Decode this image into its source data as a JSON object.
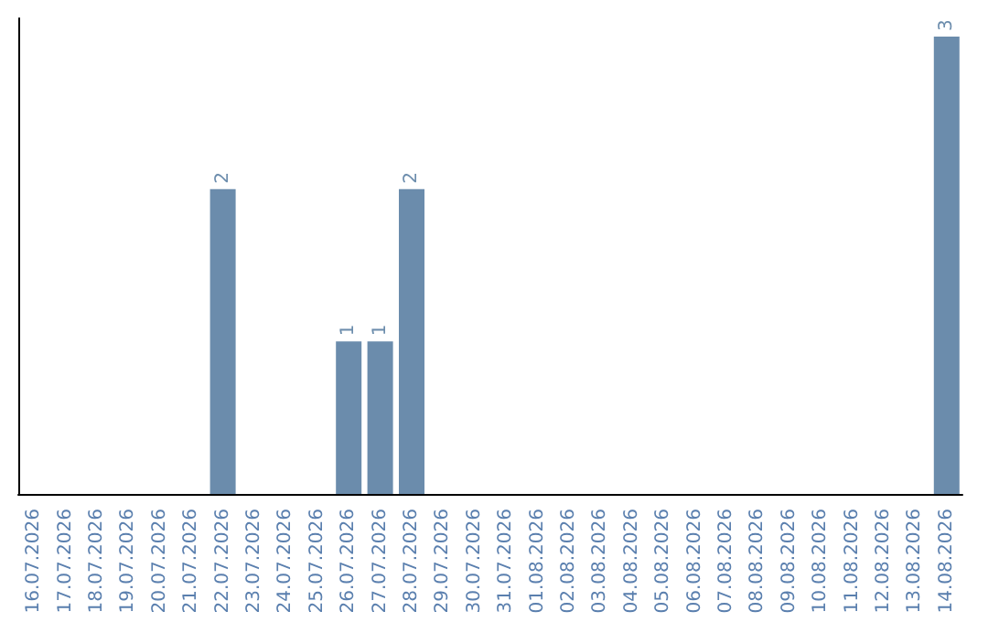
{
  "chart_data": {
    "type": "bar",
    "categories": [
      "16.07.2026",
      "17.07.2026",
      "18.07.2026",
      "19.07.2026",
      "20.07.2026",
      "21.07.2026",
      "22.07.2026",
      "23.07.2026",
      "24.07.2026",
      "25.07.2026",
      "26.07.2026",
      "27.07.2026",
      "28.07.2026",
      "29.07.2026",
      "30.07.2026",
      "31.07.2026",
      "01.08.2026",
      "02.08.2026",
      "03.08.2026",
      "04.08.2026",
      "05.08.2026",
      "06.08.2026",
      "07.08.2026",
      "08.08.2026",
      "09.08.2026",
      "10.08.2026",
      "11.08.2026",
      "12.08.2026",
      "13.08.2026",
      "14.08.2026"
    ],
    "values": [
      null,
      null,
      null,
      null,
      null,
      null,
      2,
      null,
      null,
      null,
      1,
      1,
      2,
      null,
      null,
      null,
      null,
      null,
      null,
      null,
      null,
      null,
      null,
      null,
      null,
      null,
      null,
      null,
      null,
      3
    ],
    "color": "#6b8cac",
    "data_labels": true,
    "grid": false,
    "tick_labels": "x"
  }
}
